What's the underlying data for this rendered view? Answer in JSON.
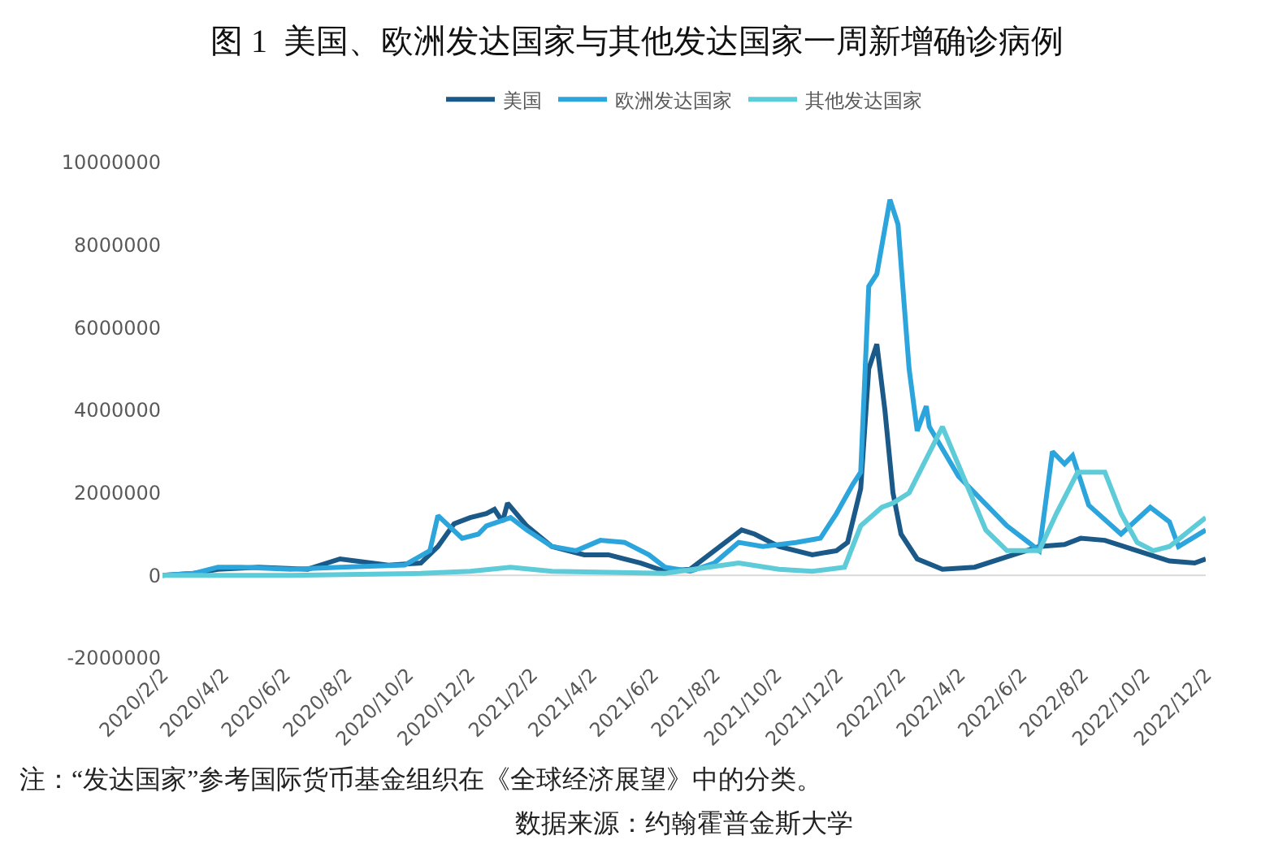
{
  "chart_data": {
    "type": "line",
    "title": "图 1  美国、欧洲发达国家与其他发达国家一周新增确诊病例",
    "annotations": [
      "注：“发达国家”参考国际货币基金组织在《全球经济展望》中的分类。",
      "数据来源：约翰霍普金斯大学"
    ],
    "xlim": [
      "2020-02-02",
      "2022-12-02"
    ],
    "xticks": [
      {
        "value": "2020-02-02",
        "label": "2020/2/2"
      },
      {
        "value": "2020-04-02",
        "label": "2020/4/2"
      },
      {
        "value": "2020-06-02",
        "label": "2020/6/2"
      },
      {
        "value": "2020-08-02",
        "label": "2020/8/2"
      },
      {
        "value": "2020-10-02",
        "label": "2020/10/2"
      },
      {
        "value": "2020-12-02",
        "label": "2020/12/2"
      },
      {
        "value": "2021-02-02",
        "label": "2021/2/2"
      },
      {
        "value": "2021-04-02",
        "label": "2021/4/2"
      },
      {
        "value": "2021-06-02",
        "label": "2021/6/2"
      },
      {
        "value": "2021-08-02",
        "label": "2021/8/2"
      },
      {
        "value": "2021-10-02",
        "label": "2021/10/2"
      },
      {
        "value": "2021-12-02",
        "label": "2021/12/2"
      },
      {
        "value": "2022-02-02",
        "label": "2022/2/2"
      },
      {
        "value": "2022-04-02",
        "label": "2022/4/2"
      },
      {
        "value": "2022-06-02",
        "label": "2022/6/2"
      },
      {
        "value": "2022-08-02",
        "label": "2022/8/2"
      },
      {
        "value": "2022-10-02",
        "label": "2022/10/2"
      },
      {
        "value": "2022-12-02",
        "label": "2022/12/2"
      }
    ],
    "ylim": [
      -2000000,
      10000000
    ],
    "yticks": [
      -2000000,
      0,
      2000000,
      4000000,
      6000000,
      8000000,
      10000000
    ],
    "grid": false,
    "ref_lines": [
      {
        "axis": "y",
        "value": 0,
        "color": "#d9d9d9"
      }
    ],
    "legend": "top",
    "marker": "none",
    "line_style": "solid",
    "series": [
      {
        "name": "美国",
        "color": "#1b5a88",
        "x": [
          "2020-02-02",
          "2020-03-04",
          "2020-03-28",
          "2020-05-07",
          "2020-06-25",
          "2020-07-27",
          "2020-09-13",
          "2020-10-15",
          "2020-11-01",
          "2020-11-17",
          "2020-12-03",
          "2020-12-19",
          "2020-12-27",
          "2021-01-04",
          "2021-01-09",
          "2021-01-28",
          "2021-02-22",
          "2021-03-26",
          "2021-04-19",
          "2021-05-21",
          "2021-06-14",
          "2021-07-09",
          "2021-08-02",
          "2021-08-29",
          "2021-09-11",
          "2021-10-05",
          "2021-11-07",
          "2021-12-01",
          "2021-12-12",
          "2021-12-25",
          "2022-01-02",
          "2022-01-10",
          "2022-01-18",
          "2022-01-26",
          "2022-02-03",
          "2022-02-19",
          "2022-03-16",
          "2022-04-17",
          "2022-05-19",
          "2022-06-20",
          "2022-07-15",
          "2022-07-31",
          "2022-08-24",
          "2022-09-25",
          "2022-10-27",
          "2022-11-21",
          "2022-12-02"
        ],
        "values": [
          0,
          50000,
          150000,
          200000,
          150000,
          400000,
          250000,
          300000,
          700000,
          1250000,
          1400000,
          1500000,
          1600000,
          1300000,
          1750000,
          1200000,
          700000,
          500000,
          500000,
          300000,
          100000,
          150000,
          600000,
          1100000,
          1000000,
          700000,
          500000,
          600000,
          800000,
          2100000,
          5000000,
          5600000,
          4000000,
          2000000,
          1000000,
          400000,
          150000,
          200000,
          450000,
          700000,
          750000,
          900000,
          850000,
          600000,
          350000,
          300000,
          400000
        ]
      },
      {
        "name": "欧洲发达国家",
        "color": "#2ca5dc",
        "x": [
          "2020-02-02",
          "2020-03-04",
          "2020-03-28",
          "2020-04-21",
          "2020-06-08",
          "2020-07-27",
          "2020-09-29",
          "2020-10-24",
          "2020-11-01",
          "2020-11-25",
          "2020-12-11",
          "2020-12-19",
          "2021-01-12",
          "2021-01-28",
          "2021-02-22",
          "2021-03-18",
          "2021-04-11",
          "2021-05-05",
          "2021-05-29",
          "2021-06-14",
          "2021-07-09",
          "2021-08-02",
          "2021-08-26",
          "2021-09-19",
          "2021-10-22",
          "2021-11-15",
          "2021-12-01",
          "2021-12-17",
          "2021-12-25",
          "2022-01-02",
          "2022-01-10",
          "2022-01-23",
          "2022-01-31",
          "2022-02-11",
          "2022-02-19",
          "2022-02-28",
          "2022-03-03",
          "2022-04-01",
          "2022-05-19",
          "2022-06-20",
          "2022-07-03",
          "2022-07-15",
          "2022-07-23",
          "2022-08-08",
          "2022-09-09",
          "2022-10-08",
          "2022-10-27",
          "2022-11-05",
          "2022-12-02"
        ],
        "values": [
          0,
          50000,
          200000,
          200000,
          150000,
          200000,
          250000,
          600000,
          1450000,
          900000,
          1000000,
          1200000,
          1400000,
          1100000,
          700000,
          600000,
          850000,
          800000,
          500000,
          200000,
          100000,
          300000,
          800000,
          700000,
          800000,
          900000,
          1500000,
          2200000,
          2500000,
          7000000,
          7300000,
          9100000,
          8500000,
          5000000,
          3500000,
          4100000,
          3600000,
          2400000,
          1200000,
          600000,
          3000000,
          2700000,
          2900000,
          1700000,
          1000000,
          1650000,
          1300000,
          700000,
          1100000
        ]
      },
      {
        "name": "其他发达国家",
        "color": "#5ecbd8",
        "x": [
          "2020-02-02",
          "2020-06-08",
          "2020-10-15",
          "2020-12-03",
          "2021-01-12",
          "2021-02-22",
          "2021-06-14",
          "2021-08-26",
          "2021-10-05",
          "2021-11-07",
          "2021-12-09",
          "2021-12-25",
          "2022-01-15",
          "2022-01-26",
          "2022-02-11",
          "2022-03-16",
          "2022-04-28",
          "2022-05-19",
          "2022-06-20",
          "2022-07-07",
          "2022-07-28",
          "2022-08-24",
          "2022-09-09",
          "2022-09-25",
          "2022-10-11",
          "2022-10-27",
          "2022-12-02"
        ],
        "values": [
          0,
          0,
          50000,
          100000,
          200000,
          100000,
          50000,
          300000,
          150000,
          100000,
          200000,
          1200000,
          1650000,
          1750000,
          2000000,
          3600000,
          1100000,
          600000,
          600000,
          1500000,
          2500000,
          2500000,
          1500000,
          800000,
          600000,
          700000,
          1400000
        ]
      }
    ]
  }
}
